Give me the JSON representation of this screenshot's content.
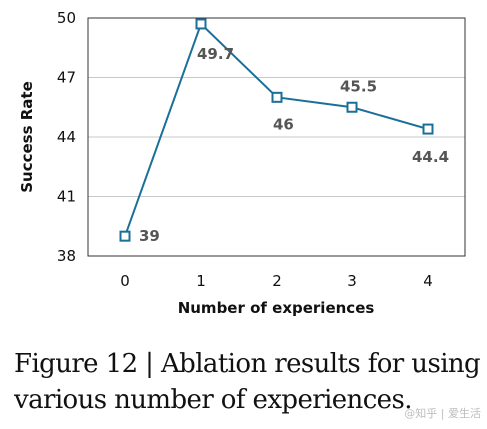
{
  "chart_data": {
    "type": "line",
    "xlabel": "Number of experiences",
    "ylabel": "Success Rate",
    "categories": [
      "0",
      "1",
      "2",
      "3",
      "4"
    ],
    "x": [
      0,
      1,
      2,
      3,
      4
    ],
    "series": [
      {
        "values": [
          39,
          49.7,
          46,
          45.5,
          44.4
        ],
        "labels": [
          "39",
          "49.7",
          "46",
          "45.5",
          "44.4"
        ],
        "color": "#1a6f99",
        "marker": "square-open"
      }
    ],
    "yticks": [
      "38",
      "41",
      "44",
      "47",
      "50"
    ],
    "ylim": [
      38,
      50
    ],
    "grid": "horizontal"
  },
  "caption": {
    "line1": "Figure 12 | Ablation results for using",
    "line2": "various number of experiences."
  },
  "watermark": "@知乎 | 爱生活"
}
